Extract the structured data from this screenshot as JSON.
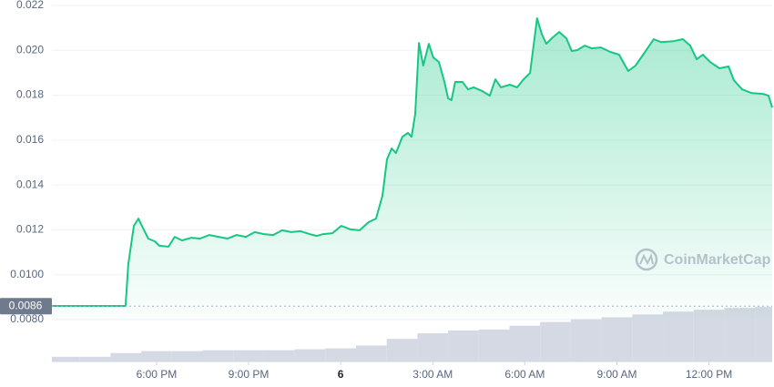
{
  "chart_data": {
    "type": "area",
    "watermark": "CoinMarketCap",
    "color": "#16c784",
    "x": [
      14.59,
      16.99,
      17.08,
      17.26,
      17.41,
      17.55,
      17.73,
      17.94,
      18.09,
      18.39,
      18.59,
      18.83,
      19.13,
      19.42,
      19.72,
      20.02,
      20.31,
      20.61,
      20.91,
      21.2,
      21.5,
      21.8,
      22.09,
      22.39,
      22.69,
      22.99,
      23.22,
      23.43,
      23.73,
      24.02,
      24.32,
      24.62,
      24.91,
      25.15,
      25.36,
      25.51,
      25.66,
      25.8,
      26.01,
      26.19,
      26.31,
      26.43,
      26.55,
      26.69,
      26.87,
      27.02,
      27.2,
      27.38,
      27.5,
      27.61,
      27.73,
      27.97,
      28.15,
      28.33,
      28.62,
      28.86,
      29.04,
      29.22,
      29.51,
      29.75,
      29.96,
      30.17,
      30.4,
      30.55,
      30.7,
      30.88,
      31.12,
      31.35,
      31.53,
      31.71,
      31.95,
      32.18,
      32.48,
      32.78,
      33.07,
      33.37,
      33.61,
      33.96,
      34.2,
      34.44,
      34.85,
      35.15,
      35.39,
      35.6,
      35.8,
      36.04,
      36.34,
      36.64,
      36.81,
      37.08,
      37.38,
      37.76,
      37.94,
      38.06
    ],
    "values": [
      0.00861,
      0.00861,
      0.01047,
      0.01218,
      0.0125,
      0.0121,
      0.01161,
      0.01149,
      0.01129,
      0.01125,
      0.01169,
      0.01153,
      0.01165,
      0.01161,
      0.01177,
      0.01169,
      0.01161,
      0.01177,
      0.01169,
      0.0119,
      0.01181,
      0.01177,
      0.01198,
      0.0119,
      0.01194,
      0.01181,
      0.01173,
      0.01181,
      0.01185,
      0.01218,
      0.01202,
      0.01198,
      0.01234,
      0.0125,
      0.01352,
      0.01514,
      0.01563,
      0.01542,
      0.01615,
      0.01632,
      0.01615,
      0.01717,
      0.02033,
      0.01932,
      0.02029,
      0.01968,
      0.01948,
      0.01859,
      0.01786,
      0.01778,
      0.01859,
      0.01859,
      0.01826,
      0.01835,
      0.01818,
      0.01798,
      0.01871,
      0.01835,
      0.01847,
      0.01835,
      0.01871,
      0.01899,
      0.02143,
      0.02074,
      0.02029,
      0.02054,
      0.02082,
      0.02054,
      0.01997,
      0.02001,
      0.02021,
      0.02009,
      0.02013,
      0.01993,
      0.01981,
      0.01908,
      0.01932,
      0.02001,
      0.0205,
      0.02037,
      0.02041,
      0.0205,
      0.02021,
      0.0196,
      0.01981,
      0.01948,
      0.0192,
      0.01928,
      0.01867,
      0.01826,
      0.0181,
      0.01806,
      0.01798,
      0.01745
    ],
    "xlim": [
      14.59,
      38.06
    ],
    "ylim": [
      0.008,
      0.022
    ],
    "xticks": [
      {
        "value": 18,
        "label": "6:00 PM"
      },
      {
        "value": 21,
        "label": "9:00 PM"
      },
      {
        "value": 24,
        "label": "6"
      },
      {
        "value": 27,
        "label": "3:00 AM"
      },
      {
        "value": 30,
        "label": "6:00 AM"
      },
      {
        "value": 33,
        "label": "9:00 AM"
      },
      {
        "value": 36,
        "label": "12:00 PM"
      }
    ],
    "yticks": [
      {
        "value": 0.008,
        "label": "0.0080"
      },
      {
        "value": 0.01,
        "label": "0.0100"
      },
      0.012,
      0.014,
      0.016,
      0.018,
      {
        "value": 0.02,
        "label": "0.020"
      },
      0.022
    ],
    "grid": true,
    "reference_line": {
      "value": 0.0086,
      "label": "0.0086"
    },
    "volume": {
      "color": "#d5d9e3",
      "x": [
        15,
        16,
        17,
        18,
        19,
        20,
        21,
        22,
        23,
        24,
        25,
        26,
        27,
        28,
        29,
        30,
        31,
        32,
        33,
        34,
        35,
        36,
        37,
        38
      ],
      "values": [
        5,
        5,
        9,
        11,
        11,
        12,
        12,
        12,
        13,
        14,
        17,
        24,
        30,
        33,
        34,
        38,
        42,
        45,
        47,
        50,
        53,
        55,
        57,
        58
      ],
      "vlim": [
        0,
        60
      ]
    }
  }
}
